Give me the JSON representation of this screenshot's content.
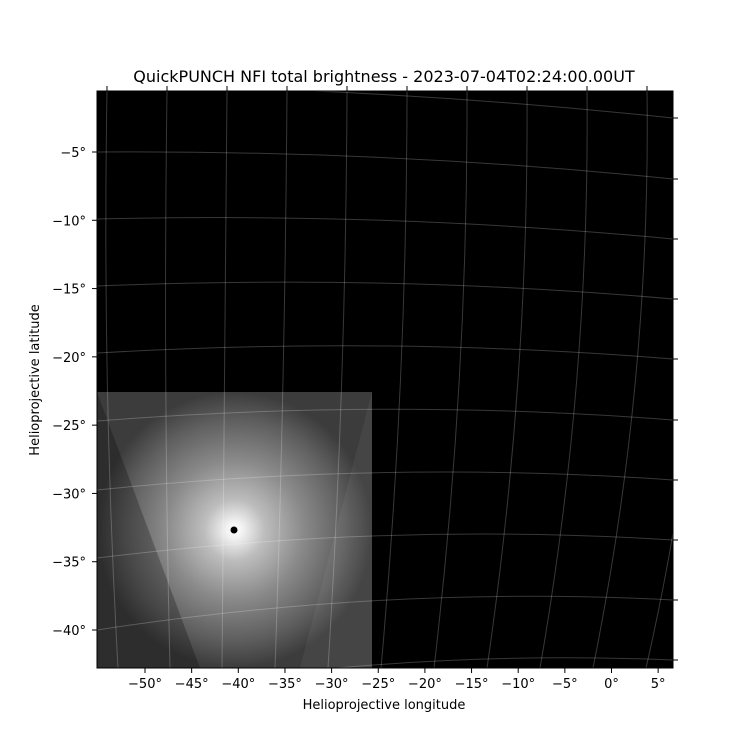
{
  "chart_data": {
    "type": "heatmap",
    "title": "QuickPUNCH NFI total brightness - 2023-07-04T02:24:00.00UT",
    "xlabel": "Helioprojective longitude",
    "ylabel": "Helioprojective latitude",
    "x_ticks": [
      "−50°",
      "−45°",
      "−40°",
      "−35°",
      "−30°",
      "−25°",
      "−20°",
      "−15°",
      "−10°",
      "−5°",
      "0°",
      "5°"
    ],
    "x_tick_values": [
      -50,
      -45,
      -40,
      -35,
      -30,
      -25,
      -20,
      -15,
      -10,
      -5,
      0,
      5
    ],
    "y_ticks": [
      "−5°",
      "−10°",
      "−15°",
      "−20°",
      "−25°",
      "−30°",
      "−35°",
      "−40°"
    ],
    "y_tick_values": [
      -5,
      -10,
      -15,
      -20,
      -25,
      -30,
      -35,
      -40
    ],
    "xlim": [
      -55.3,
      6.5
    ],
    "ylim": [
      -42.8,
      0
    ],
    "grid": true,
    "colormap": "gray",
    "background": "#000000",
    "image_extent": {
      "lon": [
        -55.3,
        -26.2
      ],
      "lat": [
        -42.8,
        -22.8
      ]
    },
    "sun_center": {
      "lon": -41.0,
      "lat": -32.9
    }
  }
}
